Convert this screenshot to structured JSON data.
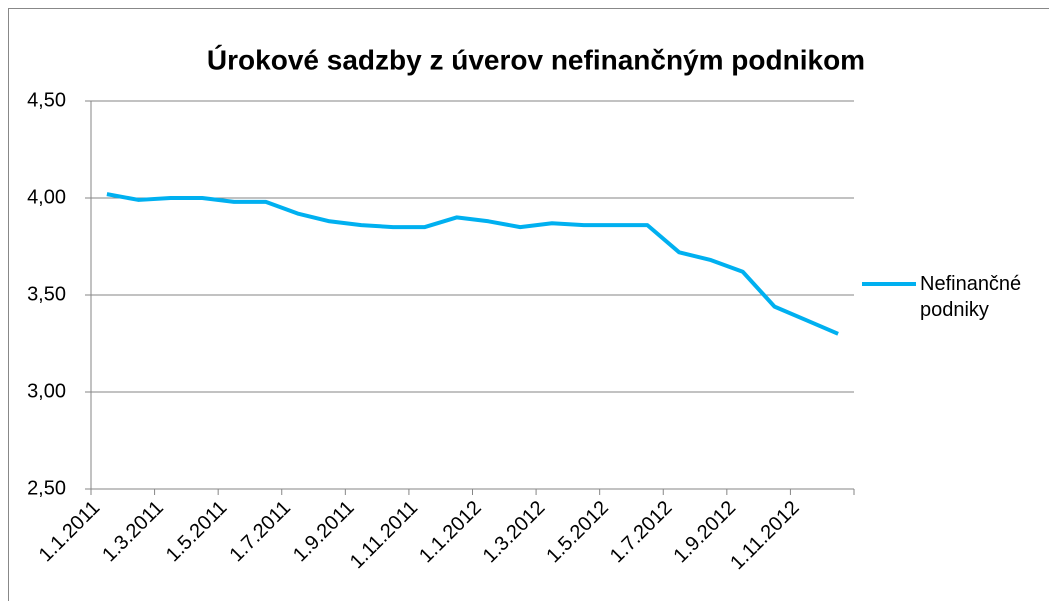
{
  "chart_data": {
    "type": "line",
    "title": "Úrokové sadzby z úverov nefinančným podnikom",
    "categories": [
      "1.1.2011",
      null,
      "1.3.2011",
      null,
      "1.5.2011",
      null,
      "1.7.2011",
      null,
      "1.9.2011",
      null,
      "1.11.2011",
      null,
      "1.1.2012",
      null,
      "1.3.2012",
      null,
      "1.5.2012",
      null,
      "1.7.2012",
      null,
      "1.9.2012",
      null,
      "1.11.2012",
      null
    ],
    "series": [
      {
        "name": "Nefinančné podniky",
        "color": "#00b0f0",
        "values": [
          4.02,
          3.99,
          4.0,
          4.0,
          3.98,
          3.98,
          3.92,
          3.88,
          3.86,
          3.85,
          3.85,
          3.9,
          3.88,
          3.85,
          3.87,
          3.86,
          3.86,
          3.86,
          3.72,
          3.68,
          3.62,
          3.44,
          3.37,
          3.3
        ]
      }
    ],
    "ylim": [
      2.5,
      4.5
    ],
    "yticks": [
      {
        "value": 2.5,
        "label": "2,50"
      },
      {
        "value": 3.0,
        "label": "3,00"
      },
      {
        "value": 3.5,
        "label": "3,50"
      },
      {
        "value": 4.0,
        "label": "4,00"
      },
      {
        "value": 4.5,
        "label": "4,50"
      }
    ],
    "grid": true,
    "legend": "right"
  }
}
